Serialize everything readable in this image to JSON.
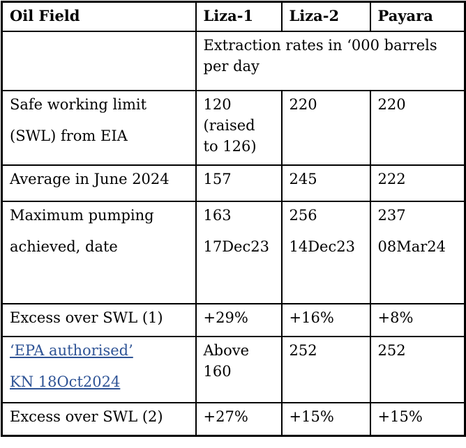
{
  "table": {
    "link_color": "#2F5496",
    "border_color": "#000000",
    "header": {
      "oil_field": "Oil Field",
      "liza1": "Liza-1",
      "liza2": "Liza-2",
      "payara": "Payara"
    },
    "units_note": "Extraction rates in ‘000 barrels\nper day",
    "rows": [
      {
        "label": [
          "Safe working limit",
          "(SWL) from EIA"
        ],
        "liza1": [
          "120\n(raised\nto 126)"
        ],
        "liza2": [
          "220"
        ],
        "payara": [
          "220"
        ]
      },
      {
        "label": [
          "Average in June 2024"
        ],
        "liza1": [
          "157"
        ],
        "liza2": [
          "245"
        ],
        "payara": [
          "222"
        ]
      },
      {
        "label": [
          "Maximum pumping",
          "achieved, date"
        ],
        "liza1": [
          "163",
          "17Dec23"
        ],
        "liza2": [
          "256",
          "14Dec23"
        ],
        "payara": [
          "237",
          "08Mar24"
        ]
      },
      {
        "label": [
          "Excess over SWL (1)"
        ],
        "liza1": [
          "+29%"
        ],
        "liza2": [
          "+16%"
        ],
        "payara": [
          "+8%"
        ]
      },
      {
        "label": [
          "‘EPA authorised’",
          "KN 18Oct2024"
        ],
        "label_is_link": true,
        "liza1": [
          "Above 160"
        ],
        "liza2": [
          "252"
        ],
        "payara": [
          "252"
        ]
      },
      {
        "label": [
          "Excess over SWL (2)"
        ],
        "liza1": [
          "+27%"
        ],
        "liza2": [
          "+15%"
        ],
        "payara": [
          "+15%"
        ]
      }
    ]
  }
}
